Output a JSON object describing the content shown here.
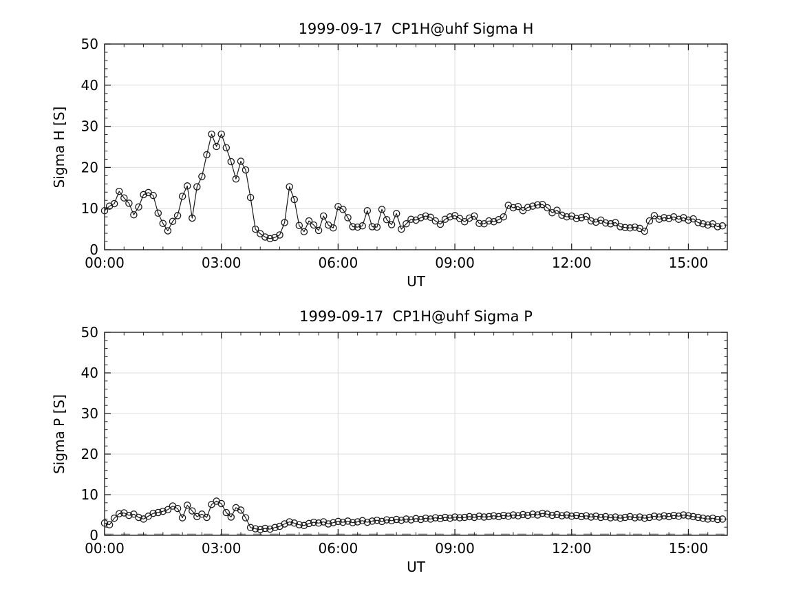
{
  "figure": {
    "background": "#ffffff",
    "text_color": "#000000",
    "grid_color": "#dcdcdc",
    "frame_color": "#222222",
    "line_color": "#1a1a1a",
    "zero_line_color": "#999999"
  },
  "chart_data": [
    {
      "type": "line",
      "title": "1999-09-17  CP1H@uhf Sigma H",
      "xlabel": "UT",
      "ylabel": "Sigma H [S]",
      "xlim_hours": [
        0,
        16
      ],
      "ylim": [
        0,
        50
      ],
      "grid": true,
      "legend": "none",
      "marker": "open-circle",
      "x_minor_step_hours": 0.5,
      "y_minor_step": 2,
      "zero_dashed_line": false,
      "xticks": [
        {
          "hour": 0,
          "label": "00:00"
        },
        {
          "hour": 3,
          "label": "03:00"
        },
        {
          "hour": 6,
          "label": "06:00"
        },
        {
          "hour": 9,
          "label": "09:00"
        },
        {
          "hour": 12,
          "label": "12:00"
        },
        {
          "hour": 15,
          "label": "15:00"
        }
      ],
      "yticks": [
        0,
        10,
        20,
        30,
        40,
        50
      ],
      "series": [
        {
          "name": "Sigma H",
          "x_start_hour": 0,
          "x_step_hour": 0.125,
          "values": [
            9.5,
            10.6,
            11.2,
            14.2,
            12.6,
            11.3,
            8.5,
            10.4,
            13.4,
            13.9,
            13.2,
            8.9,
            6.4,
            4.6,
            6.9,
            8.3,
            13.0,
            15.5,
            7.7,
            15.3,
            17.8,
            23.1,
            28.1,
            25.1,
            28.1,
            24.8,
            21.4,
            17.2,
            21.5,
            19.4,
            12.7,
            5.0,
            3.9,
            3.1,
            2.7,
            3.0,
            3.6,
            6.6,
            15.3,
            12.2,
            5.9,
            4.4,
            7.0,
            6.0,
            4.7,
            8.2,
            6.0,
            5.3,
            10.5,
            9.8,
            7.8,
            5.6,
            5.5,
            5.8,
            9.5,
            5.6,
            5.5,
            9.8,
            7.3,
            6.1,
            8.8,
            5.0,
            6.3,
            7.4,
            7.2,
            7.8,
            8.2,
            7.9,
            7.0,
            6.2,
            7.4,
            8.0,
            8.3,
            7.6,
            6.8,
            7.7,
            8.2,
            6.4,
            6.3,
            7.0,
            6.8,
            7.3,
            8.0,
            10.8,
            10.2,
            10.5,
            9.5,
            10.3,
            10.6,
            10.9,
            11.0,
            10.2,
            9.0,
            9.6,
            8.4,
            8.0,
            8.2,
            7.6,
            7.8,
            8.1,
            7.0,
            6.7,
            7.2,
            6.5,
            6.3,
            6.6,
            5.6,
            5.4,
            5.3,
            5.5,
            5.2,
            4.5,
            7.0,
            8.3,
            7.4,
            7.8,
            7.6,
            8.0,
            7.4,
            7.8,
            7.2,
            7.5,
            6.6,
            6.3,
            6.0,
            6.3,
            5.6,
            5.8
          ]
        }
      ]
    },
    {
      "type": "line",
      "title": "1999-09-17  CP1H@uhf Sigma P",
      "xlabel": "UT",
      "ylabel": "Sigma P [S]",
      "xlim_hours": [
        0,
        16
      ],
      "ylim": [
        0,
        50
      ],
      "grid": true,
      "legend": "none",
      "marker": "open-circle",
      "x_minor_step_hours": 0.5,
      "y_minor_step": 2,
      "zero_dashed_line": true,
      "xticks": [
        {
          "hour": 0,
          "label": "00:00"
        },
        {
          "hour": 3,
          "label": "03:00"
        },
        {
          "hour": 6,
          "label": "06:00"
        },
        {
          "hour": 9,
          "label": "09:00"
        },
        {
          "hour": 12,
          "label": "12:00"
        },
        {
          "hour": 15,
          "label": "15:00"
        }
      ],
      "yticks": [
        0,
        10,
        20,
        30,
        40,
        50
      ],
      "series": [
        {
          "name": "Sigma P",
          "x_start_hour": 0,
          "x_step_hour": 0.125,
          "values": [
            3.0,
            2.6,
            4.2,
            5.3,
            5.5,
            4.9,
            5.2,
            4.4,
            4.0,
            4.7,
            5.4,
            5.6,
            5.9,
            6.3,
            7.2,
            6.6,
            4.3,
            7.4,
            6.0,
            4.6,
            5.2,
            4.4,
            7.6,
            8.4,
            7.8,
            5.6,
            4.5,
            6.8,
            6.2,
            4.3,
            1.9,
            1.6,
            1.4,
            1.7,
            1.5,
            1.9,
            2.2,
            2.8,
            3.3,
            3.0,
            2.6,
            2.4,
            2.9,
            3.2,
            3.0,
            3.3,
            2.8,
            3.1,
            3.4,
            3.2,
            3.5,
            3.1,
            3.3,
            3.6,
            3.2,
            3.5,
            3.7,
            3.4,
            3.8,
            3.6,
            3.9,
            3.7,
            4.0,
            3.8,
            4.1,
            3.9,
            4.2,
            4.0,
            4.3,
            4.1,
            4.4,
            4.2,
            4.5,
            4.3,
            4.4,
            4.6,
            4.4,
            4.7,
            4.5,
            4.6,
            4.8,
            4.6,
            4.9,
            4.7,
            5.0,
            4.8,
            5.1,
            4.9,
            5.2,
            5.0,
            5.4,
            5.2,
            4.9,
            5.1,
            4.8,
            5.0,
            4.7,
            4.9,
            4.6,
            4.8,
            4.5,
            4.7,
            4.4,
            4.6,
            4.3,
            4.5,
            4.2,
            4.4,
            4.6,
            4.3,
            4.5,
            4.2,
            4.4,
            4.7,
            4.5,
            4.8,
            4.6,
            4.9,
            4.7,
            5.0,
            4.8,
            4.6,
            4.4,
            4.2,
            4.0,
            4.2,
            3.9,
            4.0
          ]
        }
      ]
    }
  ]
}
